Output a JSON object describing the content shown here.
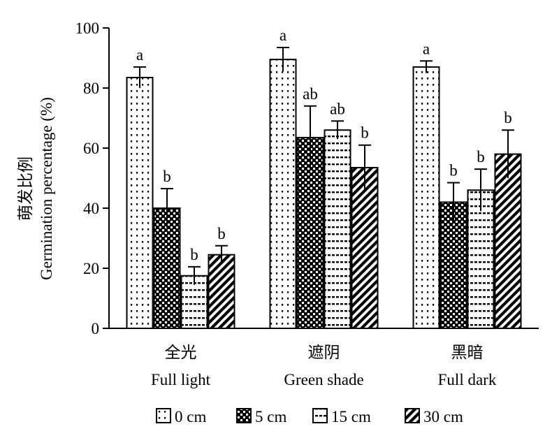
{
  "chart_data": {
    "type": "bar",
    "ylabel_zh": "萌发比例",
    "ylabel": "Germination percentage (%)",
    "ylim": [
      0,
      100
    ],
    "yticks": [
      "0",
      "20",
      "40",
      "60",
      "80",
      "100"
    ],
    "categories": [
      {
        "zh": "全光",
        "en": "Full light"
      },
      {
        "zh": "遮阴",
        "en": "Green shade"
      },
      {
        "zh": "黑暗",
        "en": "Full dark"
      }
    ],
    "series": [
      {
        "name": "0 cm",
        "pattern": "dots",
        "values": [
          83.5,
          89.5,
          87
        ],
        "errors": [
          3.5,
          4,
          2
        ],
        "letters": [
          "a",
          "a",
          "a"
        ]
      },
      {
        "name": "5 cm",
        "pattern": "checker",
        "values": [
          40,
          63.5,
          42
        ],
        "errors": [
          6.5,
          10.5,
          6.5
        ],
        "letters": [
          "b",
          "ab",
          "b"
        ]
      },
      {
        "name": "15 cm",
        "pattern": "dashes",
        "values": [
          17.5,
          66,
          46
        ],
        "errors": [
          3,
          3,
          7
        ],
        "letters": [
          "b",
          "ab",
          "b"
        ]
      },
      {
        "name": "30 cm",
        "pattern": "diagonal",
        "values": [
          24.5,
          53.5,
          58
        ],
        "errors": [
          3,
          7.5,
          8
        ],
        "letters": [
          "b",
          "b",
          "b"
        ]
      }
    ],
    "legend_position": "bottom",
    "grid": false
  }
}
